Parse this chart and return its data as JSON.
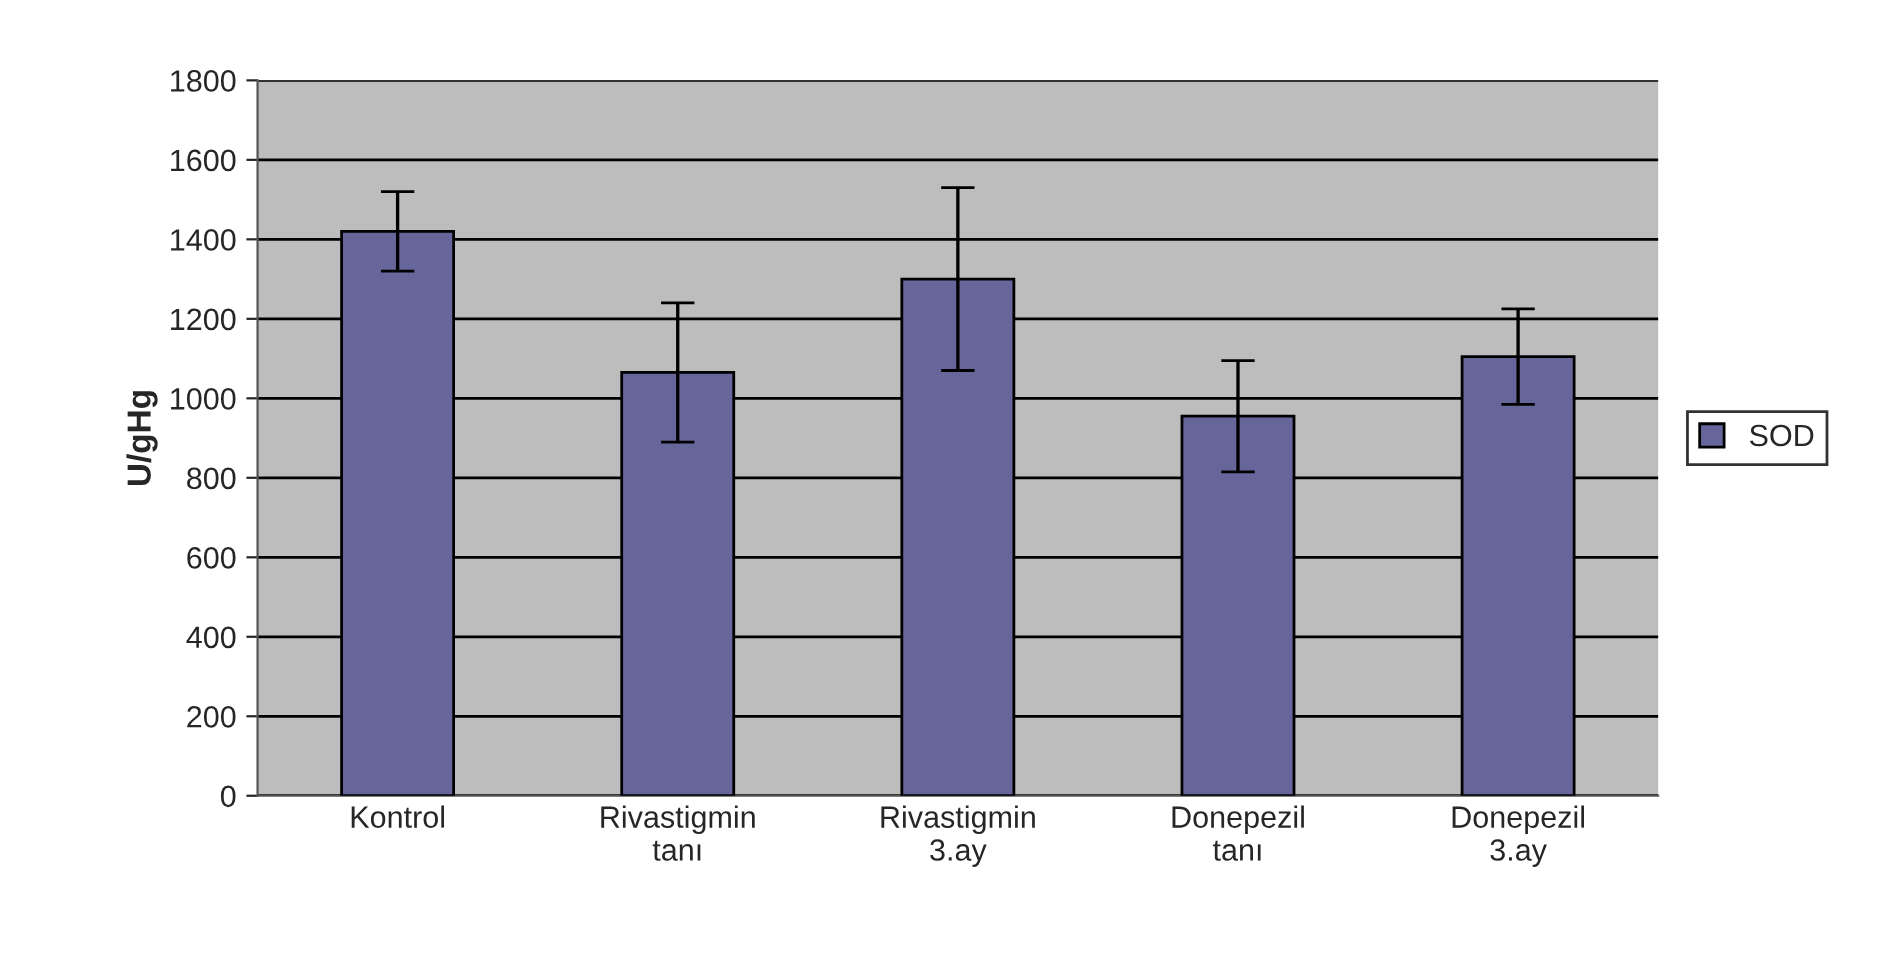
{
  "chart_data": {
    "type": "bar",
    "ylabel": "U/gHg",
    "categories": [
      "Kontrol",
      "Rivastigmin\ntanı",
      "Rivastigmin\n3.ay",
      "Donepezil\ntanı",
      "Donepezil\n3.ay"
    ],
    "series": [
      {
        "name": "SOD",
        "color": "#66669a",
        "values": [
          1420,
          1065,
          1300,
          955,
          1105
        ],
        "errors": [
          100,
          175,
          230,
          140,
          120
        ]
      }
    ],
    "ylim": [
      0,
      1800
    ],
    "yticks": [
      0,
      200,
      400,
      600,
      800,
      1000,
      1200,
      1400,
      1600,
      1800
    ],
    "grid": "y",
    "legend": "right"
  }
}
